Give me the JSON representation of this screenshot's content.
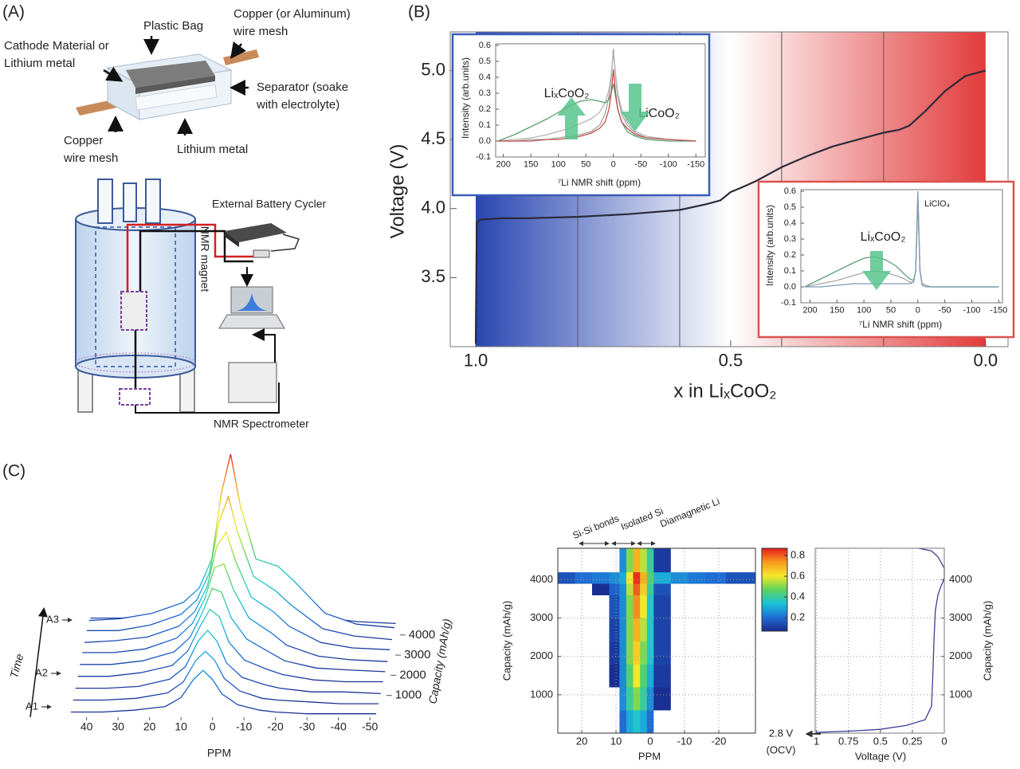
{
  "panel_labels": [
    "(A)",
    "(B)",
    "(C)"
  ],
  "diagram": {
    "cell_labels": [
      [
        "Cathode Material or",
        "Lithium metal"
      ],
      [
        "Plastic Bag"
      ],
      [
        "Copper (or Aluminum)",
        "wire mesh"
      ],
      [
        "Separator (soake",
        "with electrolyte)"
      ],
      [
        "Copper",
        "wire mesh"
      ],
      [
        "Lithium metal"
      ]
    ],
    "setup_labels": [
      "External Battery Cycler",
      "NMR magnet",
      "NMR Spectrometer"
    ]
  },
  "chart_data": [
    {
      "type": "line",
      "xlabel": "x in LiₓCoO₂",
      "ylabel": "Voltage (V)",
      "x": [
        1.0,
        0.998,
        0.99,
        0.95,
        0.9,
        0.8,
        0.7,
        0.6,
        0.55,
        0.52,
        0.5,
        0.48,
        0.45,
        0.4,
        0.35,
        0.3,
        0.25,
        0.2,
        0.17,
        0.15,
        0.12,
        0.08,
        0.04,
        0.0
      ],
      "series": [
        {
          "color": "#2b2b3a",
          "values": [
            3.02,
            3.9,
            3.92,
            3.93,
            3.93,
            3.94,
            3.96,
            3.99,
            4.03,
            4.06,
            4.12,
            4.15,
            4.2,
            4.3,
            4.38,
            4.45,
            4.5,
            4.55,
            4.57,
            4.6,
            4.7,
            4.85,
            4.96,
            5.0
          ]
        }
      ],
      "xlim": [
        1.05,
        -0.044
      ],
      "ylim": [
        3.0,
        5.28
      ],
      "xticks": [
        {
          "value": 1,
          "label": "1.0"
        },
        0.5,
        {
          "value": 0,
          "label": "0.0"
        }
      ],
      "yticks": [
        3.5,
        {
          "value": 4,
          "label": "4.0"
        },
        4.5,
        {
          "value": 5,
          "label": "5.0"
        }
      ],
      "x_markers": [
        0.8,
        0.6,
        0.4,
        0.2
      ],
      "background_gradient": [
        "#2946b0",
        "#ffffff",
        "#e23b3b"
      ],
      "grid": false
    },
    {
      "type": "line",
      "xlabel": "⁷Li NMR shift (ppm)",
      "ylabel": "Intensity (arb.units)",
      "annotations": [
        "LiₓCoO₂",
        "LiCoO₂"
      ],
      "x": [
        210,
        180,
        150,
        120,
        100,
        80,
        60,
        40,
        25,
        15,
        8,
        4,
        0,
        -4,
        -8,
        -15,
        -25,
        -40,
        -60,
        -100,
        -150
      ],
      "series": [
        {
          "color": "#a0a0a0",
          "values": [
            0,
            0,
            0.01,
            0.01,
            0.02,
            0.03,
            0.04,
            0.06,
            0.1,
            0.17,
            0.28,
            0.4,
            0.58,
            0.4,
            0.28,
            0.17,
            0.1,
            0.05,
            0.02,
            0.01,
            0
          ]
        },
        {
          "color": "#b5b5b5",
          "values": [
            0,
            0.01,
            0.02,
            0.04,
            0.06,
            0.08,
            0.11,
            0.14,
            0.18,
            0.24,
            0.32,
            0.42,
            0.55,
            0.42,
            0.3,
            0.2,
            0.12,
            0.06,
            0.03,
            0.01,
            0
          ]
        },
        {
          "color": "#5a9e6e",
          "values": [
            0,
            0.04,
            0.09,
            0.14,
            0.18,
            0.22,
            0.25,
            0.26,
            0.25,
            0.24,
            0.26,
            0.3,
            0.36,
            0.28,
            0.2,
            0.12,
            0.06,
            0.03,
            0.01,
            0,
            0
          ]
        },
        {
          "color": "#c0504d",
          "values": [
            0,
            0,
            0,
            0.01,
            0.01,
            0.02,
            0.03,
            0.05,
            0.08,
            0.12,
            0.2,
            0.3,
            0.45,
            0.3,
            0.2,
            0.12,
            0.08,
            0.04,
            0.02,
            0.01,
            0
          ]
        }
      ],
      "xlim": [
        214,
        -167
      ],
      "ylim": [
        -0.1,
        0.61
      ],
      "xticks": [
        200,
        150,
        100,
        50,
        0,
        -50,
        -100,
        -150
      ],
      "yticks": [
        -0.1,
        {
          "value": 0,
          "label": "0.0"
        },
        0.1,
        0.2,
        0.3,
        0.4,
        0.5,
        0.6
      ],
      "frame_color": "#3b5cb8",
      "grid": false
    },
    {
      "type": "line",
      "xlabel": "⁷Li NMR shift (ppm)",
      "ylabel": "Intensity (arb.units)",
      "annotations": [
        "LiₓCoO₂",
        "LiClO₄"
      ],
      "x": [
        210,
        180,
        150,
        120,
        100,
        80,
        60,
        40,
        25,
        15,
        8,
        4,
        0,
        -4,
        -8,
        -15,
        -25,
        -40,
        -60,
        -100,
        -150
      ],
      "series": [
        {
          "color": "#5f9e77",
          "values": [
            0,
            0.05,
            0.1,
            0.15,
            0.18,
            0.19,
            0.17,
            0.13,
            0.08,
            0.05,
            0.04,
            0.1,
            0.55,
            0.1,
            0.02,
            0.01,
            0,
            0,
            0,
            0,
            0
          ]
        },
        {
          "color": "#a8a8a8",
          "values": [
            0,
            0.02,
            0.04,
            0.07,
            0.09,
            0.1,
            0.09,
            0.07,
            0.05,
            0.03,
            0.03,
            0.1,
            0.58,
            0.1,
            0.02,
            0.01,
            0,
            0,
            0,
            0,
            0
          ]
        },
        {
          "color": "#7f9bb8",
          "values": [
            0,
            0,
            0.01,
            0.02,
            0.02,
            0.02,
            0.02,
            0.02,
            0.02,
            0.02,
            0.03,
            0.1,
            0.6,
            0.1,
            0.01,
            0,
            0,
            0,
            0,
            0,
            0
          ]
        }
      ],
      "xlim": [
        217,
        -157
      ],
      "ylim": [
        -0.1,
        0.61
      ],
      "xticks": [
        200,
        150,
        100,
        50,
        0,
        -50,
        -100,
        -150
      ],
      "yticks": [
        -0.1,
        {
          "value": 0,
          "label": "0.0"
        },
        0.1,
        0.2,
        0.3,
        0.4,
        0.5,
        0.6
      ],
      "frame_color": "#d9534f",
      "grid": false
    },
    {
      "type": "waterfall",
      "xlabel": "PPM",
      "ylabel": "Capacity (mAh/g)",
      "time_label": "Time",
      "time_labels": [
        "A1",
        "A2",
        "A3"
      ],
      "x": [
        45,
        35,
        25,
        15,
        10,
        6,
        3,
        0,
        -3,
        -8,
        -15,
        -20,
        -30,
        -40,
        -52
      ],
      "capacities": [
        0,
        500,
        1000,
        1500,
        2000,
        2500,
        3000,
        3500,
        4000,
        4300
      ],
      "curves": [
        [
          0.02,
          0.02,
          0.03,
          0.05,
          0.1,
          0.2,
          0.25,
          0.2,
          0.12,
          0.06,
          0.03,
          0.02,
          0.01,
          0.01,
          0.01
        ],
        [
          0.03,
          0.03,
          0.04,
          0.07,
          0.13,
          0.25,
          0.3,
          0.25,
          0.15,
          0.08,
          0.04,
          0.03,
          0.02,
          0.01,
          0.01
        ],
        [
          0.04,
          0.04,
          0.05,
          0.09,
          0.16,
          0.3,
          0.36,
          0.3,
          0.18,
          0.1,
          0.06,
          0.04,
          0.02,
          0.02,
          0.01
        ],
        [
          0.05,
          0.05,
          0.07,
          0.11,
          0.19,
          0.33,
          0.42,
          0.38,
          0.24,
          0.14,
          0.09,
          0.06,
          0.03,
          0.02,
          0.02
        ],
        [
          0.06,
          0.06,
          0.08,
          0.13,
          0.21,
          0.35,
          0.48,
          0.46,
          0.32,
          0.2,
          0.13,
          0.08,
          0.04,
          0.03,
          0.02
        ],
        [
          0.07,
          0.07,
          0.09,
          0.15,
          0.23,
          0.37,
          0.54,
          0.56,
          0.42,
          0.26,
          0.18,
          0.11,
          0.05,
          0.03,
          0.02
        ],
        [
          0.07,
          0.08,
          0.1,
          0.16,
          0.24,
          0.38,
          0.6,
          0.68,
          0.52,
          0.32,
          0.24,
          0.16,
          0.07,
          0.04,
          0.03
        ],
        [
          0.08,
          0.08,
          0.11,
          0.17,
          0.25,
          0.4,
          0.68,
          0.82,
          0.62,
          0.38,
          0.3,
          0.22,
          0.09,
          0.05,
          0.03
        ],
        [
          0.08,
          0.09,
          0.12,
          0.18,
          0.26,
          0.42,
          0.78,
          1.0,
          0.72,
          0.42,
          0.38,
          0.3,
          0.12,
          0.06,
          0.04
        ],
        [
          0.06,
          0.06,
          0.08,
          0.1,
          0.14,
          0.2,
          0.3,
          0.35,
          0.3,
          0.2,
          0.15,
          0.1,
          0.06,
          0.04,
          0.03
        ]
      ],
      "xlim": [
        47,
        -53
      ],
      "xticks": [
        40,
        30,
        20,
        10,
        0,
        -10,
        -20,
        -30,
        -40,
        -50
      ],
      "capacity_ticks": [
        1000,
        2000,
        3000,
        4000
      ],
      "colormap": [
        "#1a2a8c",
        "#1f6fd6",
        "#19c3d9",
        "#5fd35a",
        "#f5e92a",
        "#f79a1f",
        "#e51c1c"
      ]
    },
    {
      "type": "heatmap",
      "xlabel": "PPM",
      "ylabel": "Capacity (mAh/g)",
      "annotations": [
        "Si-Si bonds",
        "Isolated Si",
        "Diamagnetic Li"
      ],
      "x_edges": [
        27,
        22,
        17,
        12,
        9,
        7,
        5,
        3,
        1,
        -1,
        -6,
        -11,
        -16,
        -22,
        -30.7
      ],
      "y_edges": [
        0,
        600,
        1200,
        1800,
        2400,
        3000,
        3600,
        3900,
        4200,
        4820
      ],
      "z": [
        [
          0,
          0,
          0,
          0.05,
          0.2,
          0.3,
          0.35,
          0.3,
          0.2,
          0.05,
          0,
          0,
          0,
          0
        ],
        [
          0,
          0,
          0,
          0.05,
          0.25,
          0.4,
          0.5,
          0.4,
          0.25,
          0.08,
          0,
          0,
          0,
          0
        ],
        [
          0,
          0,
          0,
          0.08,
          0.25,
          0.45,
          0.6,
          0.45,
          0.3,
          0.1,
          0,
          0,
          0,
          0
        ],
        [
          0,
          0,
          0.02,
          0.1,
          0.25,
          0.5,
          0.65,
          0.5,
          0.35,
          0.12,
          0.02,
          0,
          0,
          0
        ],
        [
          0,
          0,
          0.03,
          0.12,
          0.25,
          0.5,
          0.7,
          0.55,
          0.35,
          0.12,
          0.03,
          0,
          0,
          0
        ],
        [
          0,
          0.02,
          0.05,
          0.15,
          0.25,
          0.5,
          0.75,
          0.6,
          0.35,
          0.12,
          0.04,
          0,
          0,
          0
        ],
        [
          0.02,
          0.05,
          0.08,
          0.18,
          0.25,
          0.55,
          0.8,
          0.65,
          0.4,
          0.15,
          0.05,
          0.02,
          0,
          0
        ],
        [
          0.15,
          0.2,
          0.22,
          0.25,
          0.3,
          0.6,
          0.85,
          0.7,
          0.45,
          0.3,
          0.25,
          0.22,
          0.2,
          0.15
        ],
        [
          0,
          0,
          0,
          0.05,
          0.25,
          0.5,
          0.7,
          0.55,
          0.4,
          0.1,
          0,
          0,
          0,
          0
        ]
      ],
      "xlim": [
        27,
        -30.7
      ],
      "ylim": [
        0,
        4820
      ],
      "xticks": [
        20,
        10,
        0,
        -10,
        -20
      ],
      "yticks": [
        1000,
        2000,
        3000,
        4000
      ],
      "grid": true,
      "colormap": [
        "#1a2a8c",
        "#1f6fd6",
        "#19c3d9",
        "#5fd35a",
        "#f5e92a",
        "#f79a1f",
        "#e51c1c"
      ],
      "clim": [
        0.07,
        0.87
      ],
      "colorbar_ticks": [
        0.2,
        0.4,
        0.6,
        0.8
      ]
    },
    {
      "type": "line",
      "xlabel": "Voltage (V)",
      "ylabel": "Capacity (mAh/g)",
      "y_axis_position": "right",
      "annotations": [
        "2.8 V",
        "(OCV)"
      ],
      "x": [
        1.0,
        0.7,
        0.5,
        0.3,
        0.15,
        0.1,
        0.09,
        0.08,
        0.07,
        0.05,
        0.03,
        0.01,
        0.0,
        0.0,
        0.05,
        0.1,
        0.2
      ],
      "series": [
        {
          "color": "#3a3f9a",
          "values": [
            20,
            60,
            100,
            200,
            350,
            700,
            1500,
            2500,
            3200,
            3600,
            3800,
            3950,
            4050,
            4300,
            4600,
            4750,
            4820
          ]
        }
      ],
      "xlim": [
        1.01,
        0
      ],
      "ylim": [
        0,
        4820
      ],
      "xticks": [
        1,
        0.75,
        0.5,
        0.25,
        0
      ],
      "yticks": [
        1000,
        2000,
        3000,
        4000
      ],
      "grid": true
    }
  ]
}
